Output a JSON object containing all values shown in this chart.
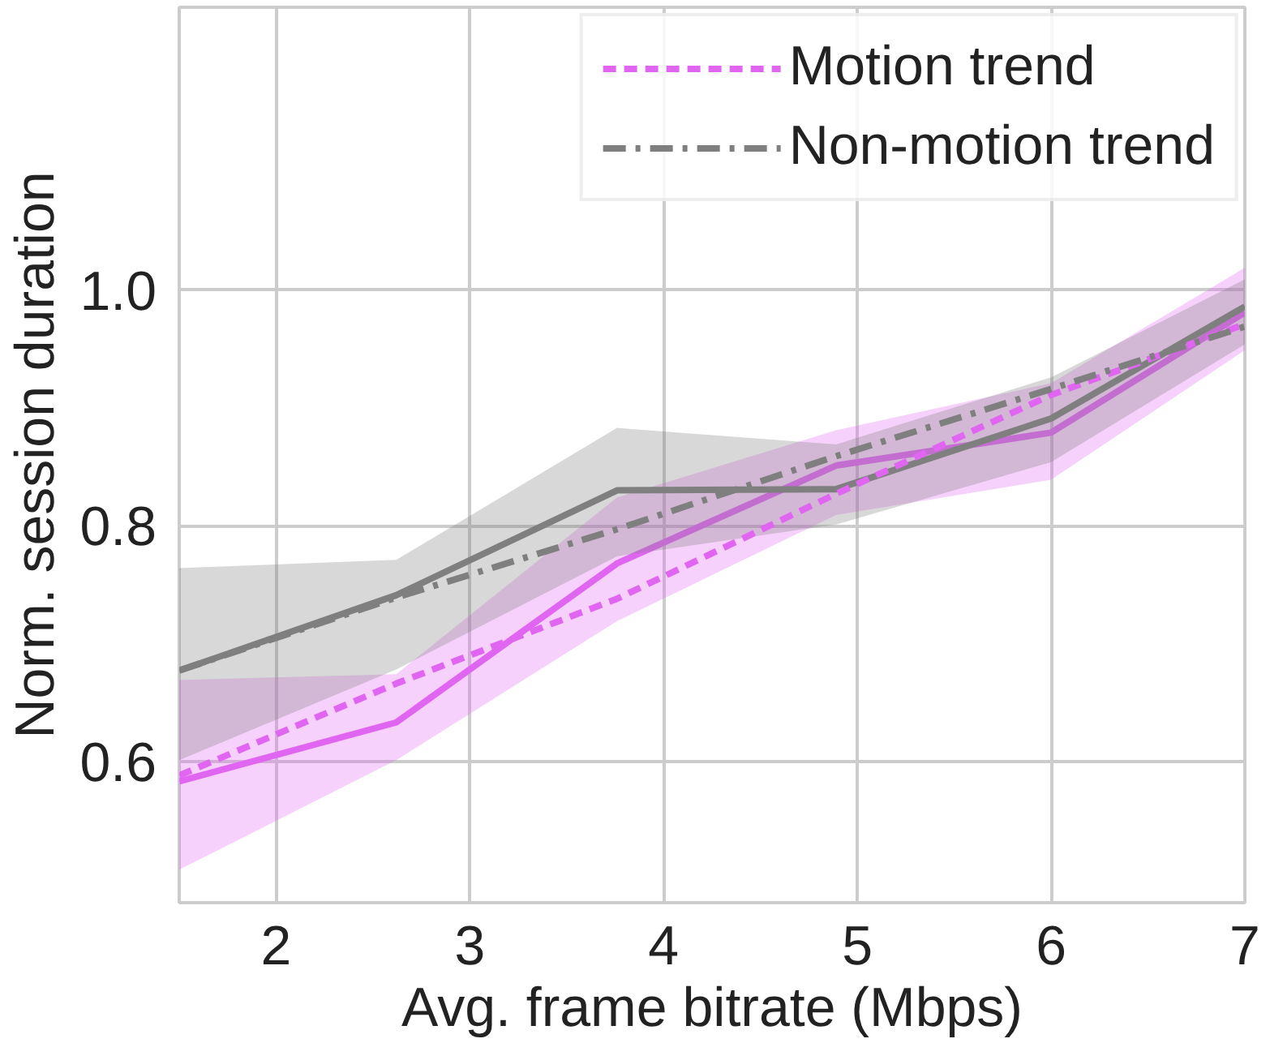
{
  "chart_data": {
    "type": "line",
    "xlabel": "Avg. frame bitrate (Mbps)",
    "ylabel": "Norm. session duration",
    "x": [
      1.5,
      2.62,
      3.76,
      4.89,
      6.0,
      7.0
    ],
    "xlim": [
      1.5,
      7
    ],
    "ylim": [
      0.48,
      1.24
    ],
    "xticks": [
      2,
      3,
      4,
      5,
      6,
      7
    ],
    "yticks": [
      0.6,
      0.8,
      {
        "value": 1,
        "label": "1.0"
      }
    ],
    "grid": true,
    "legend": "top right",
    "marker": "none",
    "series": [
      {
        "color": "#e066f2",
        "line_style": "solid",
        "values": [
          0.583,
          0.633,
          0.768,
          0.851,
          0.879,
          0.981
        ],
        "lower": [
          0.508,
          0.601,
          0.719,
          0.809,
          0.839,
          0.949
        ],
        "upper": [
          0.669,
          0.674,
          0.824,
          0.881,
          0.921,
          1.019
        ]
      },
      {
        "color": "#7f7f7f",
        "line_style": "solid",
        "values": [
          0.677,
          0.741,
          0.83,
          0.831,
          0.891,
          0.986
        ],
        "lower": [
          0.601,
          0.678,
          0.774,
          0.801,
          0.854,
          0.954
        ],
        "upper": [
          0.764,
          0.771,
          0.883,
          0.869,
          0.926,
          1.009
        ]
      },
      {
        "name": "Motion trend",
        "color": "#e066f2",
        "line_style": "dashed",
        "values": [
          0.588,
          0.666,
          0.738,
          0.827,
          0.911,
          0.971
        ]
      },
      {
        "name": "Non-motion trend",
        "color": "#7f7f7f",
        "line_style": "dashdot",
        "values": [
          0.677,
          0.739,
          0.797,
          0.859,
          0.916,
          0.969
        ]
      }
    ]
  }
}
